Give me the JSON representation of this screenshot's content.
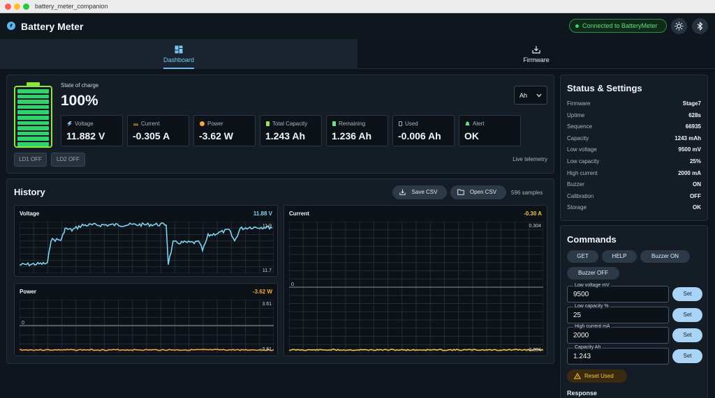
{
  "window": {
    "title": "battery_meter_companion"
  },
  "header": {
    "app_title": "Battery Meter",
    "connection": "Connected to BatteryMeter",
    "theme_icon": "sun-icon",
    "bluetooth_icon": "bluetooth-icon"
  },
  "tabs": [
    {
      "label": "Dashboard",
      "icon": "dashboard-icon",
      "active": true
    },
    {
      "label": "Firmware",
      "icon": "download-icon",
      "active": false
    }
  ],
  "overview": {
    "soc_label": "State of charge",
    "soc_value": "100%",
    "soc_fraction": 1.0,
    "unit_select": "Ah",
    "metrics": [
      {
        "label": "Voltage",
        "value": "11.882 V",
        "icon": "bolt-icon",
        "color": "#8fc7f5"
      },
      {
        "label": "Current",
        "value": "-0.305 A",
        "icon": "swap-icon",
        "color": "#f5c542"
      },
      {
        "label": "Power",
        "value": "-3.62 W",
        "icon": "power-icon",
        "color": "#f5a742"
      },
      {
        "label": "Total Capacity",
        "value": "1.243 Ah",
        "icon": "battery-icon",
        "color": "#9be35a"
      },
      {
        "label": "Remaining",
        "value": "1.236 Ah",
        "icon": "battery-icon",
        "color": "#6fe08a"
      },
      {
        "label": "Used",
        "value": "-0.006 Ah",
        "icon": "battery-empty-icon",
        "color": "#aab6c2"
      },
      {
        "label": "Alert",
        "value": "OK",
        "icon": "bell-icon",
        "color": "#6fe08a"
      }
    ],
    "ld1": "LD1 OFF",
    "ld2": "LD2 OFF",
    "live": "Live telemetry"
  },
  "history": {
    "title": "History",
    "save": "Save CSV",
    "open": "Open CSV",
    "samples": "596 samples",
    "voltage": {
      "title": "Voltage",
      "value": "11.88 V",
      "max": "11.9",
      "min": "11.7",
      "color": "#7fd3f0"
    },
    "current": {
      "title": "Current",
      "value": "-0.30 A",
      "max": "0.304",
      "zero": "0",
      "min": "-0.304",
      "color": "#f5c542"
    },
    "power": {
      "title": "Power",
      "value": "-3.62 W",
      "max": "3.61",
      "zero": "0",
      "min": "-3.61",
      "color": "#f5a742"
    }
  },
  "status": {
    "title": "Status & Settings",
    "rows": [
      {
        "k": "Firmware",
        "v": "Stage7"
      },
      {
        "k": "Uptime",
        "v": "628s"
      },
      {
        "k": "Sequence",
        "v": "66935"
      },
      {
        "k": "Capacity",
        "v": "1243 mAh"
      },
      {
        "k": "Low voltage",
        "v": "9500 mV"
      },
      {
        "k": "Low capacity",
        "v": "25%"
      },
      {
        "k": "High current",
        "v": "2000 mA"
      },
      {
        "k": "Buzzer",
        "v": "ON"
      },
      {
        "k": "Calibration",
        "v": "OFF"
      },
      {
        "k": "Storage",
        "v": "OK"
      }
    ]
  },
  "commands": {
    "title": "Commands",
    "get": "GET",
    "help": "HELP",
    "buzzer_on": "Buzzer ON",
    "buzzer_off": "Buzzer OFF",
    "fields": [
      {
        "label": "Low voltage mV",
        "value": "9500"
      },
      {
        "label": "Low capacity %",
        "value": "25"
      },
      {
        "label": "High current mA",
        "value": "2000"
      },
      {
        "label": "Capacity Ah",
        "value": "1.243"
      }
    ],
    "set": "Set",
    "reset": "Reset Used",
    "response": "Response"
  }
}
